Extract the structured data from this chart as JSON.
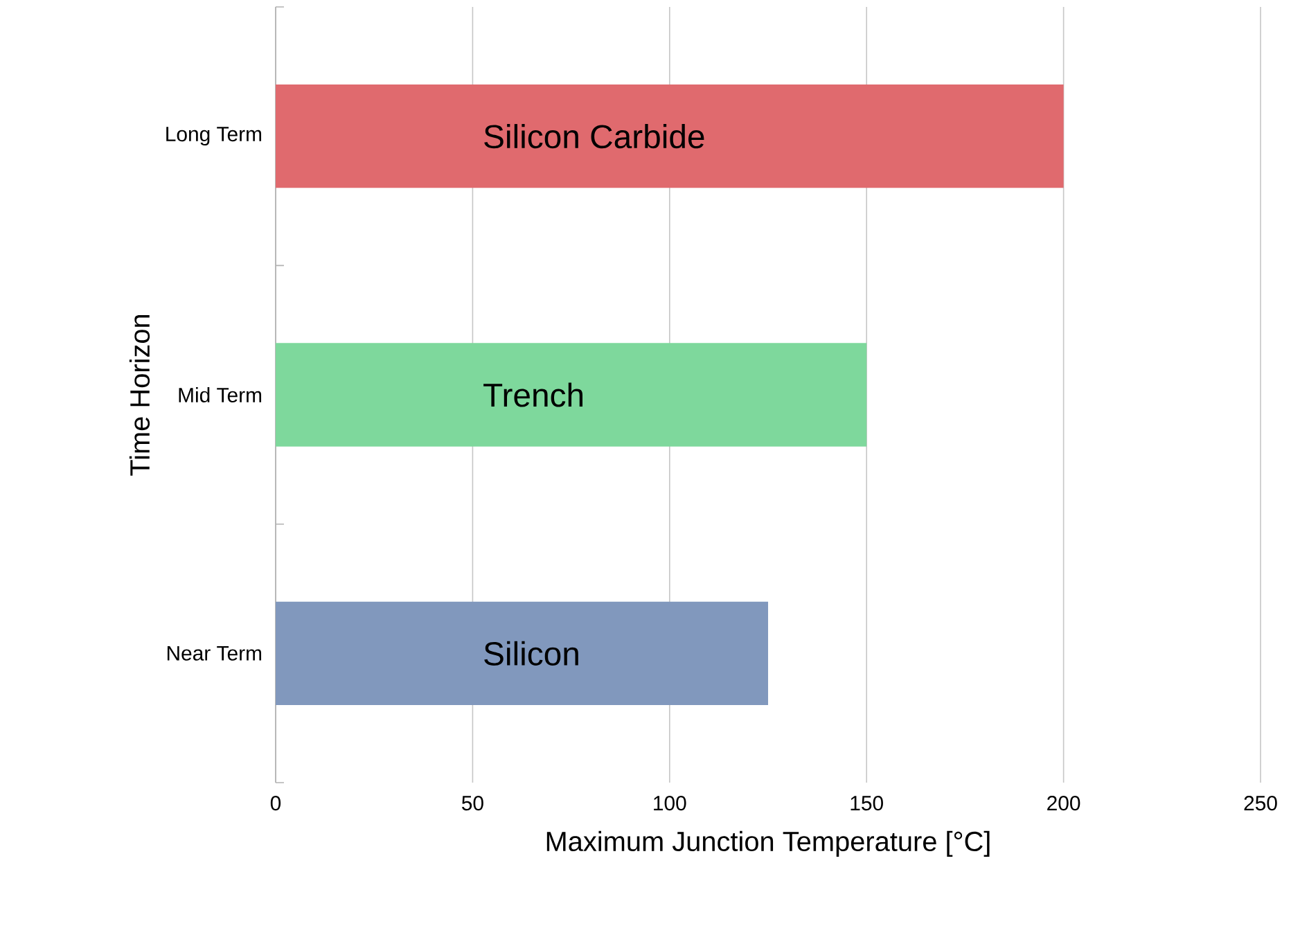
{
  "chart_data": {
    "type": "bar",
    "orientation": "horizontal",
    "xlabel": "Maximum Junction Temperature [°C]",
    "ylabel": "Time Horizon",
    "categories": [
      "Long Term",
      "Mid Term",
      "Near Term"
    ],
    "values": [
      200,
      150,
      125
    ],
    "colors": [
      "#e06a6e",
      "#7ed89c",
      "#8198bd"
    ],
    "xlim": [
      0,
      250
    ],
    "xticks": [
      0,
      50,
      100,
      150,
      200,
      250
    ],
    "grid": "x",
    "annotations": [
      "Silicon Carbide",
      "Trench",
      "Silicon"
    ]
  }
}
